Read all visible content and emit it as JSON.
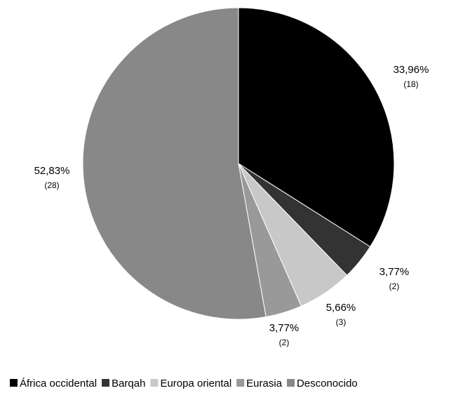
{
  "chart_data": {
    "type": "pie",
    "title": "",
    "slices": [
      {
        "label": "África occidental",
        "value": 18,
        "percent_label": "33,96%",
        "count_label": "(18)",
        "color": "#000000"
      },
      {
        "label": "Barqah",
        "value": 2,
        "percent_label": "3,77%",
        "count_label": "(2)",
        "color": "#333333"
      },
      {
        "label": "Europa oriental",
        "value": 3,
        "percent_label": "5,66%",
        "count_label": "(3)",
        "color": "#c8c8c8"
      },
      {
        "label": "Eurasia",
        "value": 2,
        "percent_label": "3,77%",
        "count_label": "(2)",
        "color": "#999999"
      },
      {
        "label": "Desconocido",
        "value": 28,
        "percent_label": "52,83%",
        "count_label": "(28)",
        "color": "#888888"
      }
    ],
    "start_angle_deg": 0,
    "direction": "clockwise",
    "legend_position": "bottom"
  }
}
